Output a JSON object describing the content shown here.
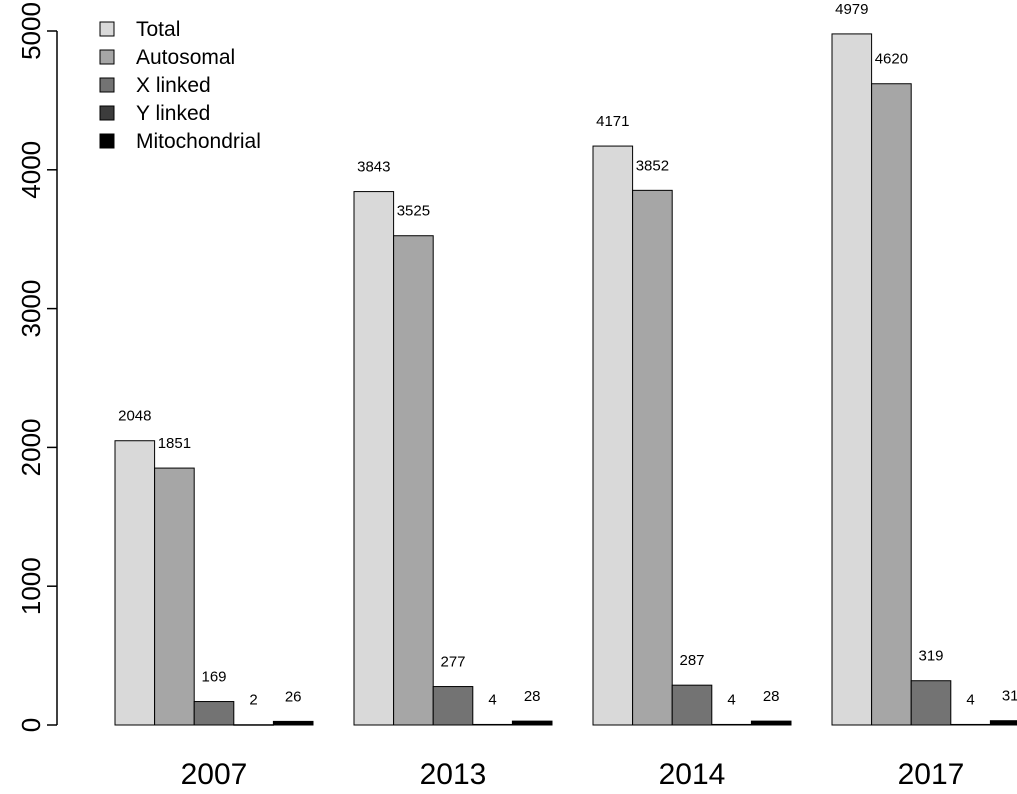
{
  "chart_data": {
    "type": "bar",
    "title": "",
    "xlabel": "",
    "ylabel": "",
    "ylim": [
      0,
      5000
    ],
    "yticks": [
      0,
      1000,
      2000,
      3000,
      4000,
      5000
    ],
    "grid": false,
    "legend_position": "top-left",
    "categories": [
      "2007",
      "2013",
      "2014",
      "2017"
    ],
    "series": [
      {
        "name": "Total",
        "color": "#d9d9d9",
        "values": [
          2048,
          3843,
          4171,
          4979
        ]
      },
      {
        "name": "Autosomal",
        "color": "#a6a6a6",
        "values": [
          1851,
          3525,
          3852,
          4620
        ]
      },
      {
        "name": "X linked",
        "color": "#737373",
        "values": [
          169,
          277,
          287,
          319
        ]
      },
      {
        "name": "Y linked",
        "color": "#3c3c3c",
        "values": [
          2,
          4,
          4,
          4
        ]
      },
      {
        "name": "Mitochondrial",
        "color": "#000000",
        "values": [
          26,
          28,
          28,
          31
        ]
      }
    ]
  }
}
